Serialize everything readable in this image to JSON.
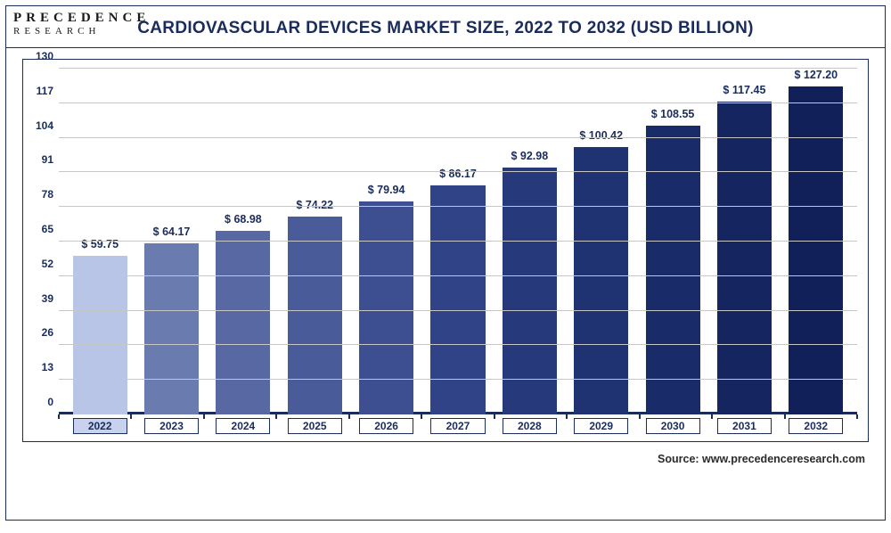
{
  "logo": {
    "line1": "PRECEDENCE",
    "line2": "RESEARCH"
  },
  "title": "CARDIOVASCULAR DEVICES MARKET SIZE, 2022 TO 2032 (USD BILLION)",
  "source": "Source: www.precedenceresearch.com",
  "chart": {
    "type": "bar",
    "ylim": [
      0,
      130
    ],
    "yticks": [
      0,
      13,
      26,
      39,
      52,
      65,
      78,
      91,
      104,
      117,
      130
    ],
    "grid_color": "#c7c7c7",
    "axis_color": "#1a2c5b",
    "background_color": "#ffffff",
    "bar_width_pct": 76,
    "label_fontsize": 12.5,
    "tick_fontsize": 12,
    "categories": [
      "2022",
      "2023",
      "2024",
      "2025",
      "2026",
      "2027",
      "2028",
      "2029",
      "2030",
      "2031",
      "2032"
    ],
    "values": [
      59.75,
      64.17,
      68.98,
      74.22,
      79.94,
      86.17,
      92.98,
      100.42,
      108.55,
      117.45,
      127.2
    ],
    "value_labels": [
      "$ 59.75",
      "$ 64.17",
      "$ 68.98",
      "$ 74.22",
      "$ 79.94",
      "$ 86.17",
      "$ 92.98",
      "$ 100.42",
      "$ 108.55",
      "$ 117.45",
      "$ 127.20"
    ],
    "bar_colors": [
      "#b9c5e6",
      "#6a7bb0",
      "#5868a3",
      "#4a5b9a",
      "#3d4f91",
      "#304386",
      "#26397b",
      "#1f3272",
      "#192b69",
      "#142560",
      "#112058"
    ],
    "highlighted_category_index": 0,
    "highlight_fill": "#c8d2ec"
  }
}
